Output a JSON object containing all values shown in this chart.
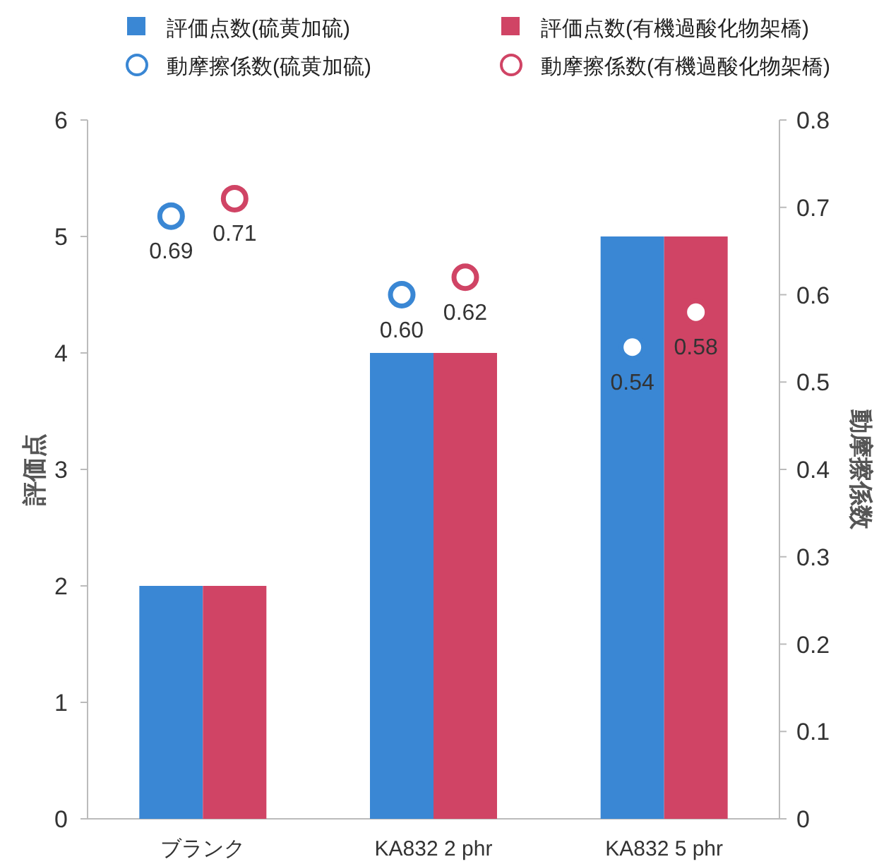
{
  "chart_data": {
    "type": "bar",
    "categories": [
      "ブランク",
      "KA832 2 phr",
      "KA832 5 phr"
    ],
    "ylabel": "評価点",
    "y2label": "動摩擦係数",
    "ylim": [
      0,
      6
    ],
    "yticks": [
      0,
      1,
      2,
      3,
      4,
      5,
      6
    ],
    "y2lim": [
      0,
      0.8
    ],
    "y2ticks": [
      0,
      0.1,
      0.2,
      0.3,
      0.4,
      0.5,
      0.6,
      0.7,
      0.8
    ],
    "legend": "top",
    "marker": "circle",
    "series": [
      {
        "name": "評価点数(硫黄加硫)",
        "color": "#3a87d4",
        "values": [
          2,
          4,
          5
        ]
      },
      {
        "name": "評価点数(有機過酸化物架橋)",
        "color": "#d04465",
        "values": [
          2,
          4,
          5
        ]
      },
      {
        "name": "動摩擦係数(硫黄加硫)",
        "type": "scatter",
        "axis": "y2",
        "color": "#3a87d4",
        "values": [
          0.69,
          0.6,
          0.54
        ],
        "value_labels": [
          "0.69",
          "0.60",
          "0.54"
        ]
      },
      {
        "name": "動摩擦係数(有機過酸化物架橋)",
        "type": "scatter",
        "axis": "y2",
        "color": "#d04465",
        "values": [
          0.71,
          0.62,
          0.58
        ],
        "value_labels": [
          "0.71",
          "0.62",
          "0.58"
        ]
      }
    ]
  }
}
